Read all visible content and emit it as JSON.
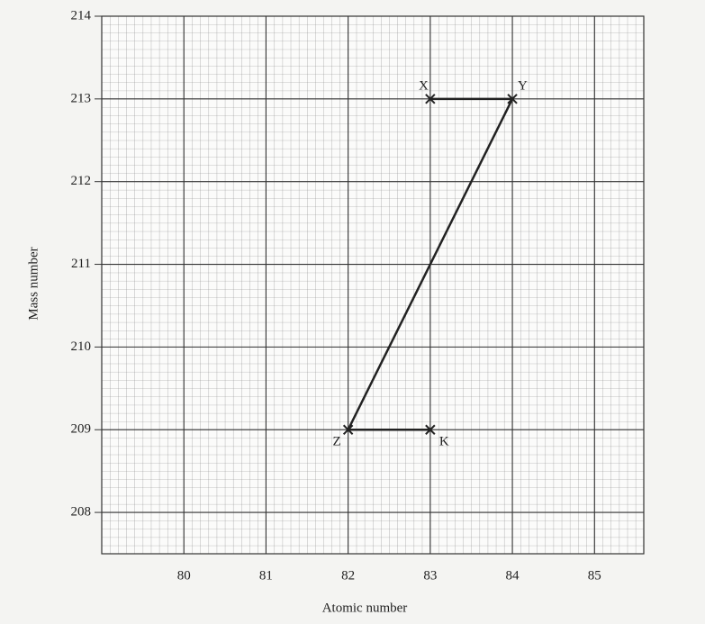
{
  "chart_data": {
    "type": "line",
    "x_label": "Atomic number",
    "y_label": "Mass number",
    "series": [
      {
        "x": [
          83,
          84,
          82,
          83
        ],
        "values": [
          213,
          213,
          209,
          209
        ],
        "point_labels": [
          "X",
          "Y",
          "Z",
          "K"
        ],
        "color": "#222222"
      }
    ],
    "xlim": [
      79,
      85.6
    ],
    "xticks": [
      80,
      81,
      82,
      83,
      84,
      85
    ],
    "ylim": [
      207.5,
      214
    ],
    "yticks": [
      208,
      209,
      210,
      211,
      212,
      213,
      214
    ],
    "grid": true
  }
}
